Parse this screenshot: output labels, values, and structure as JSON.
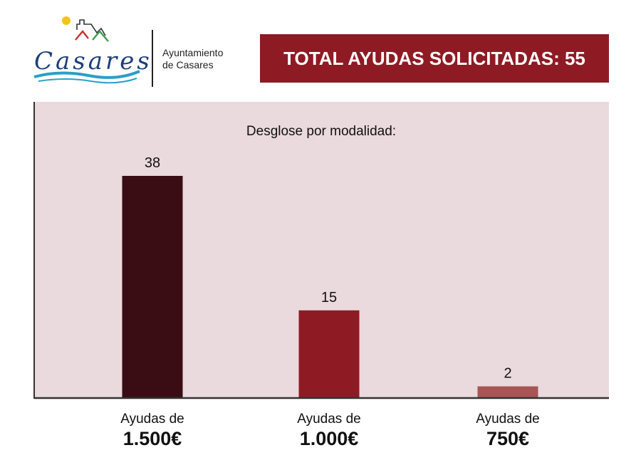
{
  "header": {
    "logo_text": "Casares",
    "org_line1": "Ayuntamiento",
    "org_line2": "de Casares",
    "total_label": "TOTAL AYUDAS SOLICITADAS: 55"
  },
  "colors": {
    "brand_red": "#8e1b24",
    "chart_bg": "#ead9dd",
    "bar_1": "#3a0c14",
    "bar_2": "#8e1b24",
    "bar_3": "#a85555",
    "logo_blue": "#1d3f7a",
    "logo_wave": "#2a9fc7"
  },
  "chart_data": {
    "type": "bar",
    "title": "Desglose por modalidad:",
    "categories": [
      {
        "line1": "Ayudas de",
        "line2": "1.500€"
      },
      {
        "line1": "Ayudas de",
        "line2": "1.000€"
      },
      {
        "line1": "Ayudas de",
        "line2": "750€"
      }
    ],
    "values": [
      38,
      15,
      2
    ],
    "ylim": [
      0,
      50
    ],
    "grid": false,
    "data_labels": true
  }
}
